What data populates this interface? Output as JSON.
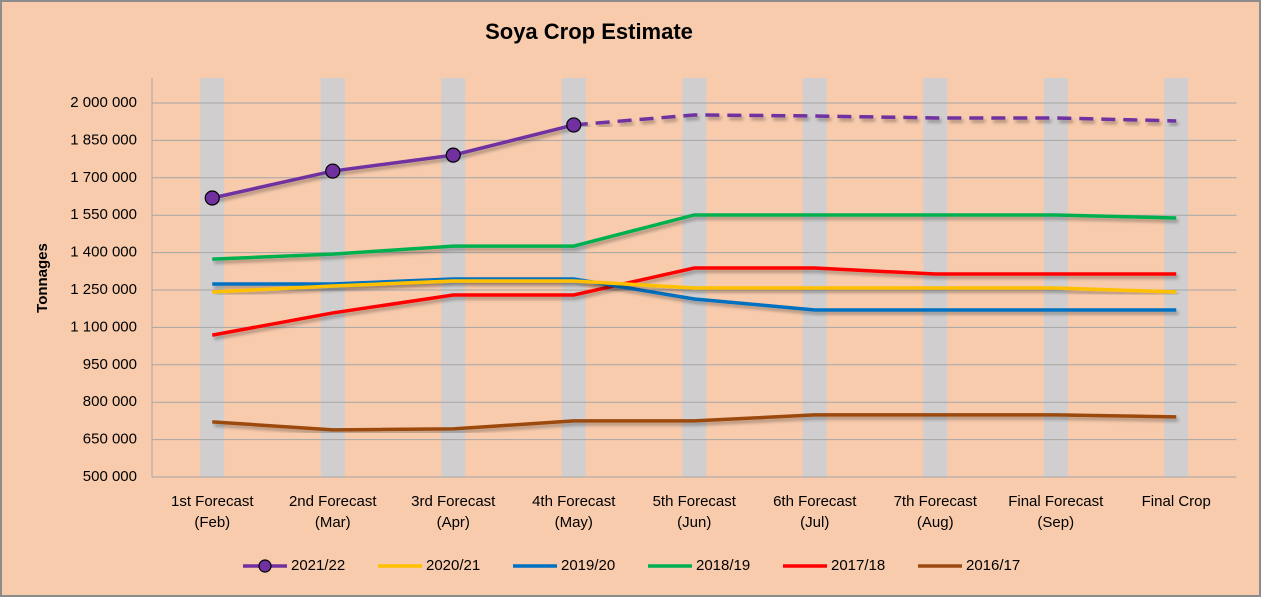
{
  "chart_data": {
    "type": "line",
    "title": "Soya Crop Estimate",
    "y_label": "Tonnages",
    "categories": [
      [
        "1st Forecast",
        "(Feb)"
      ],
      [
        "2nd Forecast",
        "(Mar)"
      ],
      [
        "3rd Forecast",
        "(Apr)"
      ],
      [
        "4th Forecast",
        "(May)"
      ],
      [
        "5th Forecast",
        "(Jun)"
      ],
      [
        "6th Forecast",
        "(Jul)"
      ],
      [
        "7th Forecast",
        "(Aug)"
      ],
      [
        "Final Forecast",
        "(Sep)"
      ],
      [
        "Final Crop"
      ]
    ],
    "ylim": [
      500000,
      2000000
    ],
    "yticks": [
      {
        "value": 500000,
        "label": "500 000"
      },
      {
        "value": 650000,
        "label": "650 000"
      },
      {
        "value": 800000,
        "label": "800 000"
      },
      {
        "value": 950000,
        "label": "950 000"
      },
      {
        "value": 1100000,
        "label": "1 100 000"
      },
      {
        "value": 1250000,
        "label": "1 250 000"
      },
      {
        "value": 1400000,
        "label": "1 400 000"
      },
      {
        "value": 1550000,
        "label": "1 550 000"
      },
      {
        "value": 1700000,
        "label": "1 700 000"
      },
      {
        "value": 1850000,
        "label": "1 850 000"
      },
      {
        "value": 2000000,
        "label": "2 000 000"
      }
    ],
    "grid": true,
    "legend": "bottom",
    "series": [
      {
        "name": "2021/22",
        "color": "#7030a0",
        "marker": "circle",
        "values": [
          1619000,
          1727000,
          1791000,
          1912000,
          1952000,
          1948000,
          1940000,
          1940000,
          1928000
        ],
        "line_styles": [
          "solid",
          "solid",
          "solid",
          "dashed",
          "dashed",
          "dashed",
          "dashed",
          "dashed"
        ]
      },
      {
        "name": "2020/21",
        "color": "#ffc000",
        "values": [
          1242000,
          1266000,
          1286000,
          1286000,
          1258000,
          1258000,
          1258000,
          1258000,
          1242000
        ]
      },
      {
        "name": "2019/20",
        "color": "#0070c0",
        "values": [
          1274000,
          1274000,
          1294000,
          1294000,
          1214000,
          1170000,
          1170000,
          1170000,
          1170000
        ]
      },
      {
        "name": "2018/19",
        "color": "#00b050",
        "values": [
          1374000,
          1394000,
          1426000,
          1426000,
          1551000,
          1551000,
          1551000,
          1551000,
          1539000
        ]
      },
      {
        "name": "2017/18",
        "color": "#ff0000",
        "values": [
          1069000,
          1158000,
          1230000,
          1230000,
          1338000,
          1338000,
          1314000,
          1314000,
          1314000
        ]
      },
      {
        "name": "2016/17",
        "color": "#9c4a10",
        "values": [
          721000,
          689000,
          693000,
          725000,
          725000,
          749000,
          749000,
          749000,
          741000
        ]
      }
    ]
  }
}
